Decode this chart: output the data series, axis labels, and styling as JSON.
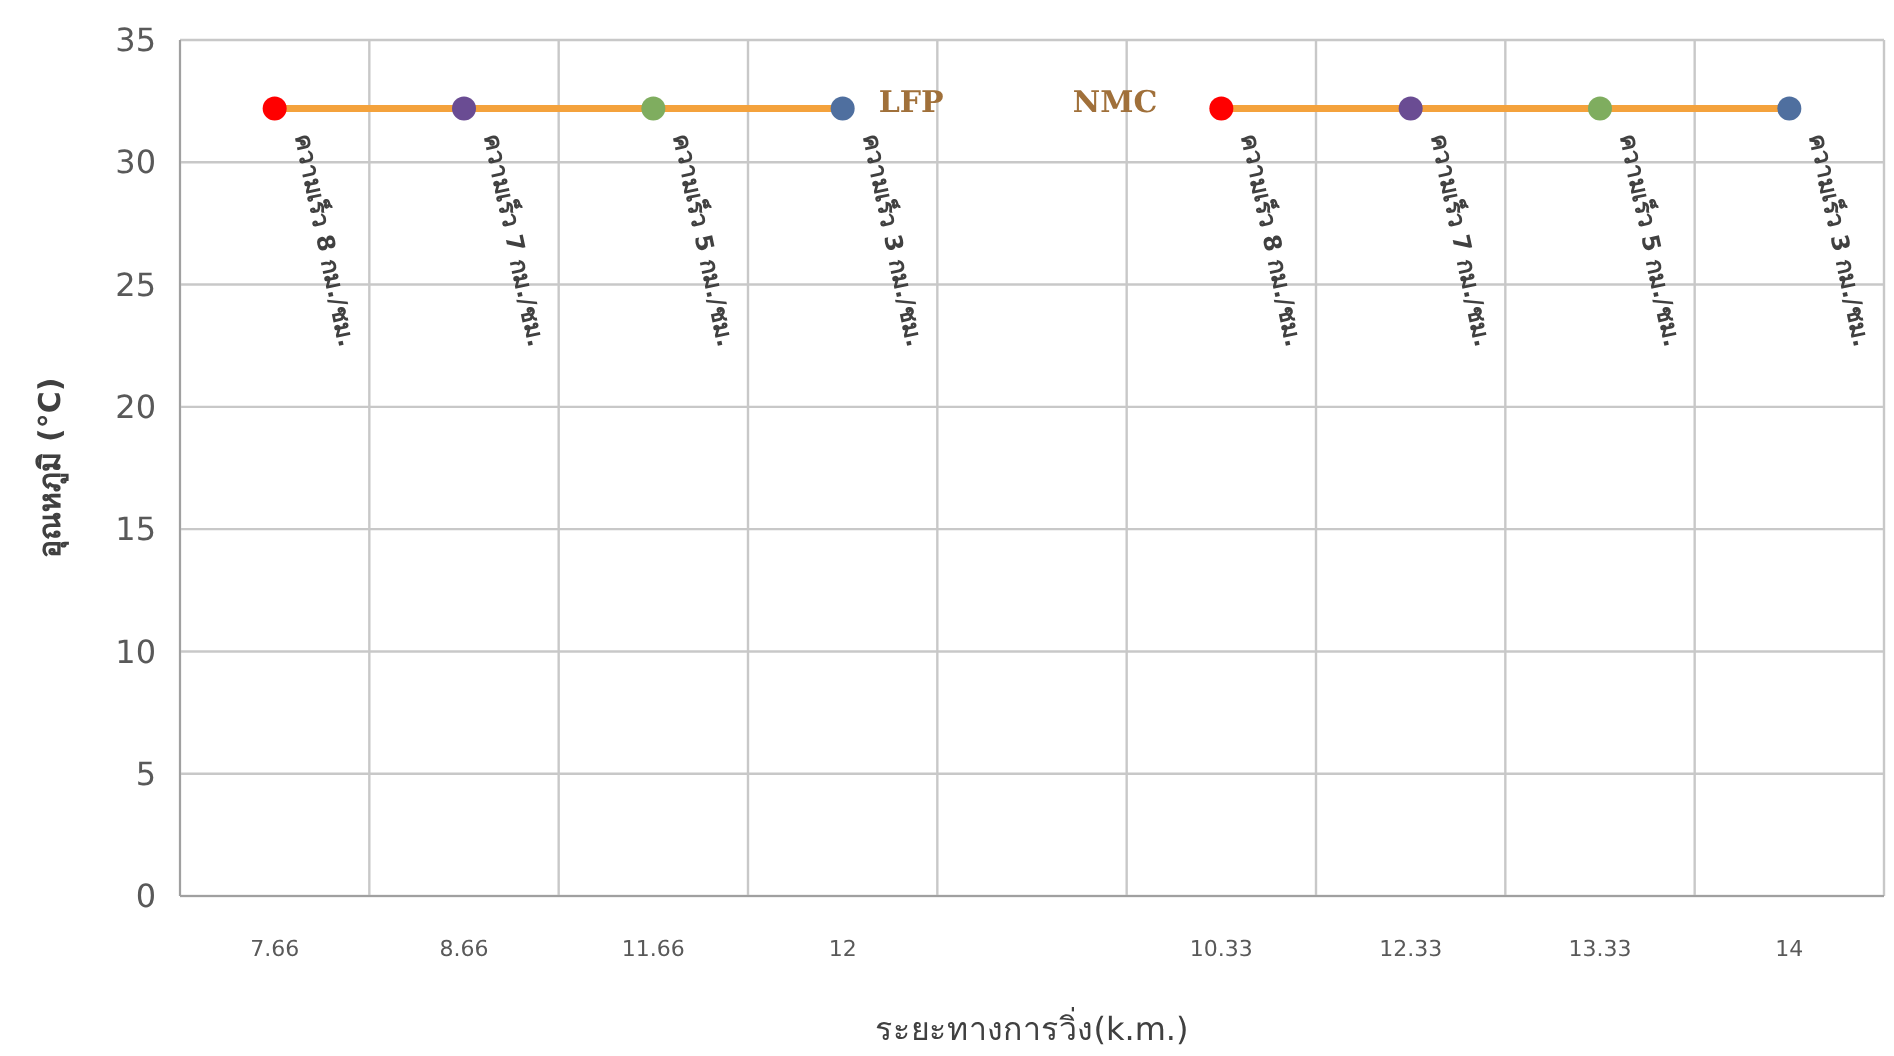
{
  "chart_data": {
    "type": "line",
    "xlabel": "ระยะทางการวิ่ง(k.m.)",
    "ylabel": "อุณหภูมิ (°C)",
    "categories": [
      "7.66",
      "8.66",
      "11.66",
      "12",
      null,
      "10.33",
      "12.33",
      "13.33",
      "14"
    ],
    "ylim": [
      0,
      35
    ],
    "yticks": [
      0,
      5,
      10,
      15,
      20,
      25,
      30,
      35
    ],
    "grid": true,
    "marker": "circle",
    "line_style": "solid",
    "series": [
      {
        "name": "LFP",
        "color": "#f4a23c",
        "colors": [
          "#ff0000",
          "#6a4c93",
          "#7fad5f",
          "#4f6f9f",
          null,
          null,
          null,
          null,
          null
        ],
        "values": [
          32.2,
          32.2,
          32.2,
          32.2,
          null,
          null,
          null,
          null,
          null
        ],
        "value_labels": [
          "ความเร็ว 8 กม./ชม.",
          "ความเร็ว 7 กม./ชม.",
          "ความเร็ว 5 กม./ชม.",
          "ความเร็ว 3 กม./ชม.",
          null,
          null,
          null,
          null,
          null
        ]
      },
      {
        "name": "NMC",
        "color": "#f4a23c",
        "colors": [
          null,
          null,
          null,
          null,
          null,
          "#ff0000",
          "#6a4c93",
          "#7fad5f",
          "#4f6f9f"
        ],
        "values": [
          null,
          null,
          null,
          null,
          null,
          32.2,
          32.2,
          32.2,
          32.2
        ],
        "value_labels": [
          null,
          null,
          null,
          null,
          null,
          "ความเร็ว 8 กม./ชม.",
          "ความเร็ว 7 กม./ชม.",
          "ความเร็ว 5 กม./ชม.",
          "ความเร็ว 3 กม./ชม."
        ]
      }
    ]
  }
}
